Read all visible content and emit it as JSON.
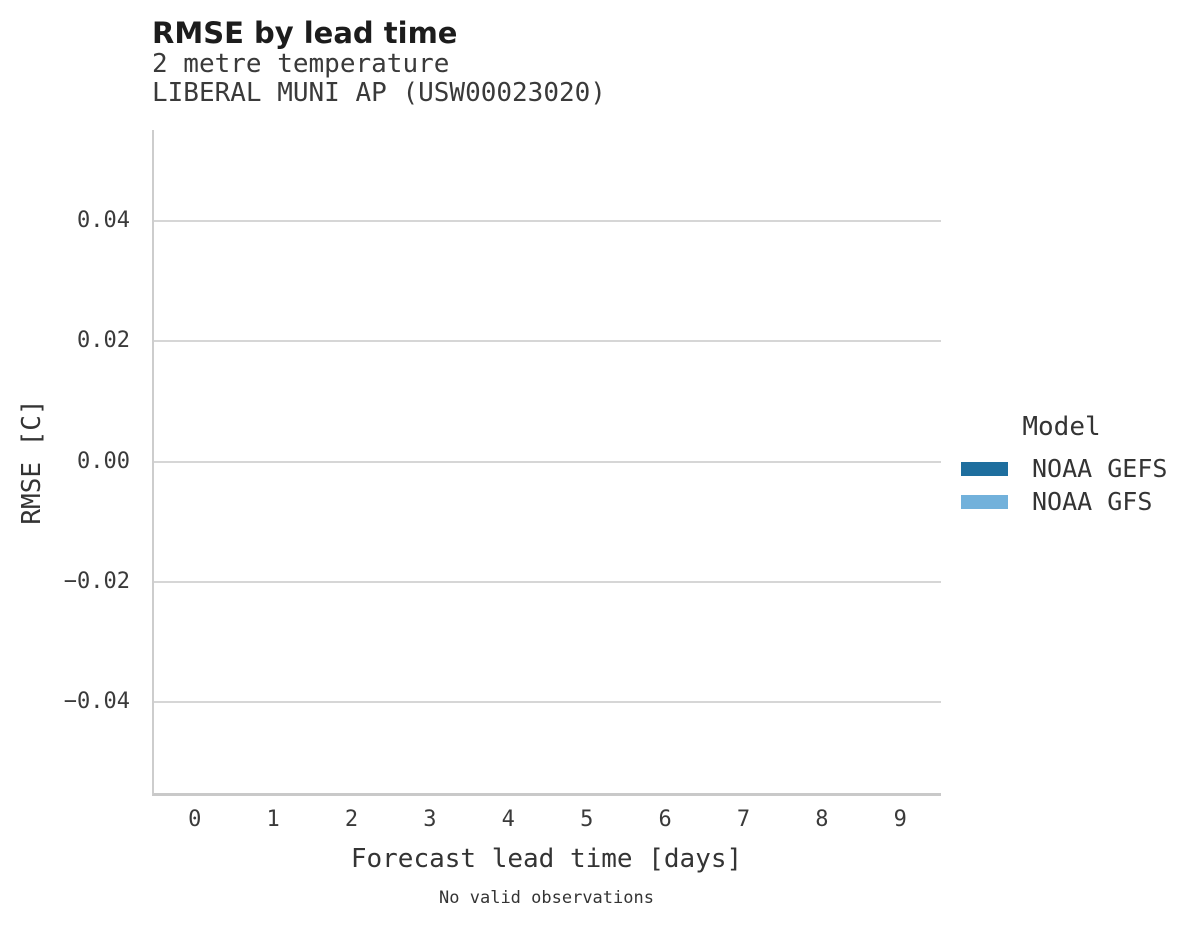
{
  "chart_data": {
    "type": "line",
    "title": "RMSE by lead time",
    "subtitle": [
      "2 metre temperature",
      "LIBERAL MUNI AP (USW00023020)"
    ],
    "xlabel": "Forecast lead time [days]",
    "ylabel": "RMSE [C]",
    "x_ticks": [
      0,
      1,
      2,
      3,
      4,
      5,
      6,
      7,
      8,
      9
    ],
    "x_tick_labels": [
      "0",
      "1",
      "2",
      "3",
      "4",
      "5",
      "6",
      "7",
      "8",
      "9"
    ],
    "x_domain": [
      -0.52,
      9.52
    ],
    "y_ticks": [
      0.04,
      0.02,
      0.0,
      -0.02,
      -0.04
    ],
    "y_tick_labels": [
      "0.04",
      "0.02",
      "0.00",
      "−0.02",
      "−0.04"
    ],
    "y_domain": [
      -0.0552,
      0.0552
    ],
    "grid": true,
    "series": [
      {
        "name": "NOAA GEFS",
        "values": []
      },
      {
        "name": "NOAA GFS",
        "values": []
      }
    ],
    "note": "No valid observations",
    "legend": {
      "title": "Model",
      "position": "right",
      "items": [
        {
          "label": "NOAA GEFS",
          "color": "#1e6e9e"
        },
        {
          "label": "NOAA GFS",
          "color": "#72b1db"
        }
      ]
    },
    "colors": {
      "gridline": "#d6d6d6",
      "axis_domain": "#c9c9c9",
      "text": "#343434",
      "title": "#1c1c1c"
    }
  }
}
